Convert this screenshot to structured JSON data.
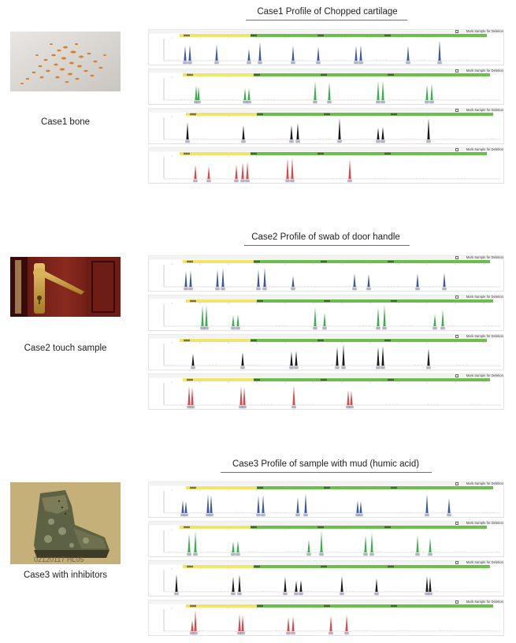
{
  "cases": [
    {
      "title": "Case1  Profile of Chopped cartilage",
      "caption": "Case1  bone",
      "photo": "bone-fragments-photo",
      "mark_label": "Mark Sample for Deletion",
      "dyes": [
        "#3b5aa6",
        "#38b04a",
        "#1a1a1a",
        "#e04646"
      ]
    },
    {
      "title": "Case2  Profile of swab of door handle",
      "caption": "Case2  touch sample",
      "photo": "door-handle-photo",
      "mark_label": "Mark Sample for Deletion",
      "dyes": [
        "#3b5aa6",
        "#38b04a",
        "#1a1a1a",
        "#e04646"
      ]
    },
    {
      "title": "Case3  Profile of sample with mud (humic acid)",
      "caption": "Case3  with inhibitors",
      "photo": "muddy-boot-photo",
      "mark_label": "Mark Sample for Deletion",
      "dyes": [
        "#3b5aa6",
        "#38b04a",
        "#1a1a1a",
        "#e04646"
      ]
    }
  ],
  "colors": {
    "title_rule": "#2f7fd0",
    "locus_yellow": "#f2e36a",
    "locus_green": "#6cc04a"
  }
}
